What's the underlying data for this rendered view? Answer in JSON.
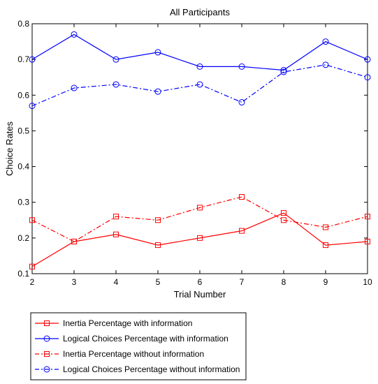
{
  "chart_data": {
    "type": "line",
    "title": "All Participants",
    "xlabel": "Trial Number",
    "ylabel": "Choice Rates",
    "x": [
      2,
      3,
      4,
      5,
      6,
      7,
      8,
      9,
      10
    ],
    "xlim": [
      2,
      10
    ],
    "ylim": [
      0.1,
      0.8
    ],
    "xticks": [
      "2",
      "3",
      "4",
      "5",
      "6",
      "7",
      "8",
      "9",
      "10"
    ],
    "yticks": [
      "0.1",
      "0.2",
      "0.3",
      "0.4",
      "0.5",
      "0.6",
      "0.7",
      "0.8"
    ],
    "grid": false,
    "legend_position": "below",
    "series": [
      {
        "name": "Inertia Percentage with information",
        "color": "#ff0000",
        "line_style": "solid",
        "marker": "square",
        "values": [
          0.12,
          0.19,
          0.21,
          0.18,
          0.2,
          0.22,
          0.27,
          0.18,
          0.19
        ]
      },
      {
        "name": "Logical Choices Percentage with information",
        "color": "#0000ff",
        "line_style": "solid",
        "marker": "circle",
        "values": [
          0.7,
          0.77,
          0.7,
          0.72,
          0.68,
          0.68,
          0.67,
          0.75,
          0.7
        ]
      },
      {
        "name": "Inertia Percentage without information",
        "color": "#ff0000",
        "line_style": "dashdot",
        "marker": "square",
        "values": [
          0.25,
          0.19,
          0.26,
          0.25,
          0.285,
          0.315,
          0.25,
          0.23,
          0.26
        ]
      },
      {
        "name": "Logical Choices Percentage without information",
        "color": "#0000ff",
        "line_style": "dashdot",
        "marker": "circle",
        "values": [
          0.57,
          0.62,
          0.63,
          0.61,
          0.63,
          0.58,
          0.665,
          0.685,
          0.65
        ]
      }
    ]
  }
}
